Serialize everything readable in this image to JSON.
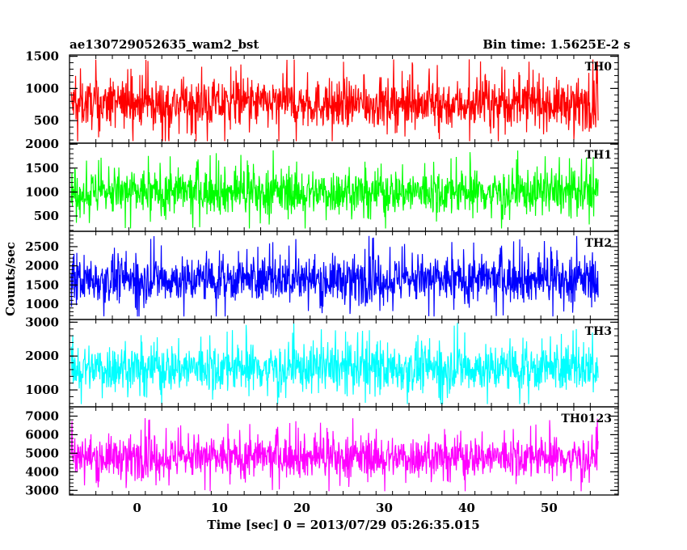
{
  "chart_data": {
    "type": "line",
    "title_left": "ae130729052635_wam2_bst",
    "title_right": "Bin time: 1.5625E-2 s",
    "xlabel": "Time [sec] 0 = 2013/07/29 05:26:35.015",
    "ylabel": "Counts/sec",
    "xlim": [
      -8.2,
      58.4
    ],
    "data_range": [
      -8.0,
      56.0
    ],
    "x_ticks": [
      0,
      10,
      20,
      30,
      40,
      50
    ],
    "x_tick_labels": [
      "0",
      "10",
      "20",
      "30",
      "40",
      "50"
    ],
    "panels": [
      {
        "name": "TH0",
        "color": "#ff0000",
        "ylim": [
          150,
          1520
        ],
        "y_ticks": [
          500,
          1000,
          1500
        ],
        "y_tick_labels": [
          "500",
          "1000",
          "1500"
        ],
        "y_minor": 100,
        "mean": 760,
        "spread": 330,
        "min_env": 180,
        "max_env": 1520
      },
      {
        "name": "TH1",
        "color": "#00ff00",
        "ylim": [
          180,
          2020
        ],
        "y_ticks": [
          500,
          1000,
          1500,
          2000
        ],
        "y_tick_labels": [
          "500",
          "1000",
          "1500",
          "2000"
        ],
        "y_minor": 100,
        "mean": 1000,
        "spread": 420,
        "min_env": 240,
        "max_env": 1870
      },
      {
        "name": "TH2",
        "color": "#0000ff",
        "ylim": [
          600,
          2900
        ],
        "y_ticks": [
          1000,
          1500,
          2000,
          2500
        ],
        "y_tick_labels": [
          "1000",
          "1500",
          "2000",
          "2500"
        ],
        "y_minor": 100,
        "mean": 1650,
        "spread": 540,
        "min_env": 680,
        "max_env": 2850
      },
      {
        "name": "TH3",
        "color": "#00ffff",
        "ylim": [
          500,
          3080
        ],
        "y_ticks": [
          1000,
          2000,
          3000
        ],
        "y_tick_labels": [
          "1000",
          "2000",
          "3000"
        ],
        "y_minor": 200,
        "mean": 1650,
        "spread": 640,
        "min_env": 580,
        "max_env": 3080
      },
      {
        "name": "TH0123",
        "color": "#ff00ff",
        "ylim": [
          2750,
          7500
        ],
        "y_ticks": [
          3000,
          4000,
          5000,
          6000,
          7000
        ],
        "y_tick_labels": [
          "3000",
          "4000",
          "5000",
          "6000",
          "7000"
        ],
        "y_minor": 200,
        "mean": 4800,
        "spread": 1000,
        "min_env": 2950,
        "max_env": 7100
      }
    ]
  }
}
